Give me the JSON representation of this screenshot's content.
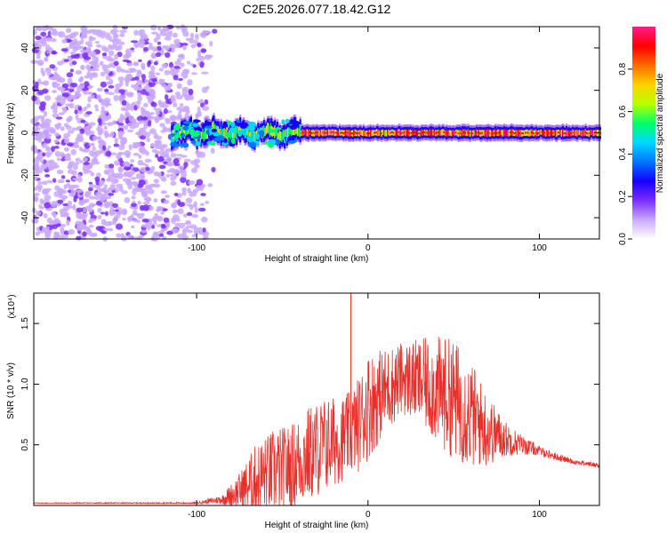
{
  "title": "C2E5.2026.077.18.42.G12",
  "colors": {
    "snr_line": "#e8302a",
    "colormap": [
      "#ffffff",
      "#c9a8ff",
      "#7a2cff",
      "#1500ff",
      "#0077ff",
      "#00d8ff",
      "#00ff66",
      "#b8ff00",
      "#ffd200",
      "#ff6a00",
      "#ff0000",
      "#ff1a8a"
    ]
  },
  "chart_data": [
    {
      "type": "heatmap",
      "name": "spectrogram",
      "xlabel": "Height of straight line (km)",
      "ylabel": "Frequency (Hz)",
      "xlim": [
        -195,
        135
      ],
      "ylim": [
        -50,
        50
      ],
      "xticks": [
        -100,
        0,
        100
      ],
      "xtick_labels": [
        "-100",
        "0",
        "100"
      ],
      "yticks": [
        -40,
        -20,
        0,
        20,
        40
      ],
      "ytick_labels": [
        "-40",
        "-20",
        "0",
        "20",
        "40"
      ],
      "colorbar": {
        "label": "Normalized spectral amplitude",
        "range": [
          0,
          1
        ],
        "ticks": [
          0.0,
          0.2,
          0.4,
          0.6,
          0.8
        ],
        "tick_labels": [
          "0.0",
          "0.2",
          "0.4",
          "0.6",
          "0.8"
        ]
      },
      "features": {
        "noise_region_x": [
          -195,
          -100
        ],
        "carrier_start_x": -115,
        "carrier_frequency_hz": 0,
        "carrier_wobble_region_x": [
          -115,
          -40
        ],
        "carrier_wobble_amplitude_hz": 5,
        "carrier_strong_region_x": [
          -40,
          135
        ]
      }
    },
    {
      "type": "line",
      "name": "snr",
      "xlabel": "Height of straight line (km)",
      "ylabel": "SNR (10 * v/v)",
      "y_scale_label": "(x10⁴)",
      "xlim": [
        -195,
        135
      ],
      "ylim": [
        0,
        1.75
      ],
      "xticks": [
        -100,
        0,
        100
      ],
      "xtick_labels": [
        "-100",
        "0",
        "100"
      ],
      "yticks": [
        0.5,
        1.0,
        1.5
      ],
      "ytick_labels": [
        "0.5",
        "1.0",
        "1.5"
      ],
      "envelope": {
        "x": [
          -195,
          -100,
          -85,
          -75,
          -65,
          -55,
          -45,
          -35,
          -25,
          -15,
          -10,
          -5,
          0,
          10,
          20,
          30,
          40,
          50,
          60,
          70,
          80,
          90,
          100,
          110,
          120,
          135
        ],
        "base": [
          0.02,
          0.02,
          0.05,
          0.12,
          0.22,
          0.28,
          0.32,
          0.42,
          0.5,
          0.55,
          0.6,
          0.68,
          0.82,
          0.95,
          1.05,
          1.02,
          0.95,
          0.88,
          0.75,
          0.62,
          0.55,
          0.5,
          0.45,
          0.4,
          0.36,
          0.33
        ],
        "spread": [
          0.003,
          0.006,
          0.04,
          0.15,
          0.3,
          0.35,
          0.35,
          0.4,
          0.4,
          0.35,
          0.35,
          0.4,
          0.45,
          0.35,
          0.3,
          0.35,
          0.45,
          0.5,
          0.45,
          0.3,
          0.15,
          0.08,
          0.04,
          0.03,
          0.02,
          0.02
        ]
      },
      "spike": {
        "x": -10,
        "y": 1.75
      }
    }
  ]
}
